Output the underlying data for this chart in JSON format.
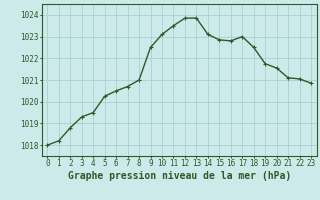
{
  "x": [
    0,
    1,
    2,
    3,
    4,
    5,
    6,
    7,
    8,
    9,
    10,
    11,
    12,
    13,
    14,
    15,
    16,
    17,
    18,
    19,
    20,
    21,
    22,
    23
  ],
  "y": [
    1018.0,
    1018.2,
    1018.8,
    1019.3,
    1019.5,
    1020.25,
    1020.5,
    1020.7,
    1021.0,
    1022.5,
    1023.1,
    1023.5,
    1023.85,
    1023.85,
    1023.1,
    1022.85,
    1022.8,
    1023.0,
    1022.5,
    1021.75,
    1021.55,
    1021.1,
    1021.05,
    1020.85
  ],
  "line_color": "#2d5a27",
  "marker": "+",
  "marker_size": 3,
  "linewidth": 1.0,
  "bg_color": "#cceaea",
  "grid_color": "#aad0d0",
  "xlabel": "Graphe pression niveau de la mer (hPa)",
  "xlabel_fontsize": 7,
  "xlabel_bold": true,
  "ylim": [
    1017.5,
    1024.5
  ],
  "yticks": [
    1018,
    1019,
    1020,
    1021,
    1022,
    1023,
    1024
  ],
  "xticks": [
    0,
    1,
    2,
    3,
    4,
    5,
    6,
    7,
    8,
    9,
    10,
    11,
    12,
    13,
    14,
    15,
    16,
    17,
    18,
    19,
    20,
    21,
    22,
    23
  ],
  "tick_fontsize": 5.5,
  "axis_color": "#2d5a27"
}
